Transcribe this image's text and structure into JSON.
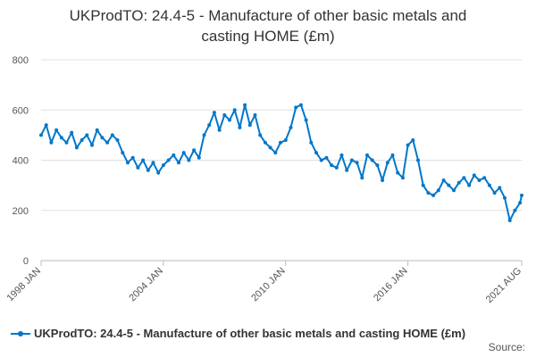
{
  "chart_data": {
    "type": "line",
    "title_line1": "UKProdTO: 24.4-5 - Manufacture of other basic metals and",
    "title_line2": "casting HOME (£m)",
    "xlabel": "",
    "ylabel": "",
    "ylim": [
      0,
      800
    ],
    "yticks": [
      "0",
      "200",
      "400",
      "600",
      "800"
    ],
    "xticks": [
      {
        "label": "1998 JAN",
        "month": 0
      },
      {
        "label": "2004 JAN",
        "month": 72
      },
      {
        "label": "2010 JAN",
        "month": 144
      },
      {
        "label": "2016 JAN",
        "month": 216
      },
      {
        "label": "2021 AUG",
        "month": 283
      }
    ],
    "x_start": "1998-01",
    "x_end": "2021-08",
    "grid": "horizontal",
    "legend_position": "bottom",
    "series": [
      {
        "name": "UKProdTO: 24.4-5 - Manufacture of other basic metals and casting HOME (£m)",
        "color": "#0077cc",
        "x": [
          "1998-01",
          "1998-04",
          "1998-07",
          "1998-10",
          "1999-01",
          "1999-04",
          "1999-07",
          "1999-10",
          "2000-01",
          "2000-04",
          "2000-07",
          "2000-10",
          "2001-01",
          "2001-04",
          "2001-07",
          "2001-10",
          "2002-01",
          "2002-04",
          "2002-07",
          "2002-10",
          "2003-01",
          "2003-04",
          "2003-07",
          "2003-10",
          "2004-01",
          "2004-04",
          "2004-07",
          "2004-10",
          "2005-01",
          "2005-04",
          "2005-07",
          "2005-10",
          "2006-01",
          "2006-04",
          "2006-07",
          "2006-10",
          "2007-01",
          "2007-04",
          "2007-07",
          "2007-10",
          "2008-01",
          "2008-04",
          "2008-07",
          "2008-10",
          "2009-01",
          "2009-04",
          "2009-07",
          "2009-10",
          "2010-01",
          "2010-04",
          "2010-07",
          "2010-10",
          "2011-01",
          "2011-04",
          "2011-07",
          "2011-10",
          "2012-01",
          "2012-04",
          "2012-07",
          "2012-10",
          "2013-01",
          "2013-04",
          "2013-07",
          "2013-10",
          "2014-01",
          "2014-04",
          "2014-07",
          "2014-10",
          "2015-01",
          "2015-04",
          "2015-07",
          "2015-10",
          "2016-01",
          "2016-04",
          "2016-07",
          "2016-10",
          "2017-01",
          "2017-04",
          "2017-07",
          "2017-10",
          "2018-01",
          "2018-04",
          "2018-07",
          "2018-10",
          "2019-01",
          "2019-04",
          "2019-07",
          "2019-10",
          "2020-01",
          "2020-04",
          "2020-07",
          "2020-10",
          "2021-01",
          "2021-04",
          "2021-07",
          "2021-08"
        ],
        "values": [
          500,
          540,
          470,
          520,
          490,
          470,
          510,
          450,
          480,
          500,
          460,
          520,
          490,
          470,
          500,
          480,
          430,
          390,
          410,
          370,
          400,
          360,
          390,
          350,
          380,
          400,
          420,
          390,
          430,
          400,
          440,
          410,
          500,
          540,
          590,
          520,
          580,
          560,
          600,
          530,
          620,
          540,
          580,
          500,
          470,
          450,
          430,
          470,
          480,
          530,
          610,
          620,
          560,
          470,
          430,
          400,
          410,
          380,
          370,
          420,
          360,
          400,
          390,
          330,
          420,
          400,
          380,
          320,
          390,
          420,
          350,
          330,
          460,
          480,
          400,
          300,
          270,
          260,
          280,
          320,
          300,
          280,
          310,
          330,
          300,
          340,
          320,
          330,
          300,
          270,
          290,
          250,
          160,
          200,
          230,
          260
        ]
      }
    ]
  },
  "legend": {
    "label": "UKProdTO: 24.4-5 - Manufacture of other basic metals and casting HOME (£m)"
  },
  "source": "Source:"
}
